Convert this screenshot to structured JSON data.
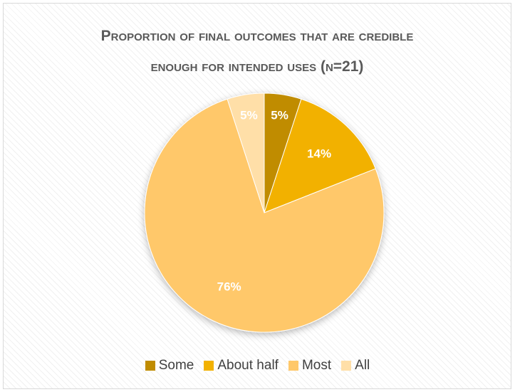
{
  "chart_data": {
    "type": "pie",
    "title_lines": [
      "Proportion of final outcomes that are credible",
      "enough for intended uses (n=21)"
    ],
    "categories": [
      "Some",
      "About half",
      "Most",
      "All"
    ],
    "values": [
      5,
      14,
      76,
      5
    ],
    "data_labels": [
      "5%",
      "14%",
      "76%",
      "5%"
    ],
    "colors": [
      "#c08c00",
      "#f2b100",
      "#ffc86a",
      "#ffdfa8"
    ],
    "start_angle_deg": 0,
    "direction": "clockwise",
    "legend_position": "bottom"
  }
}
